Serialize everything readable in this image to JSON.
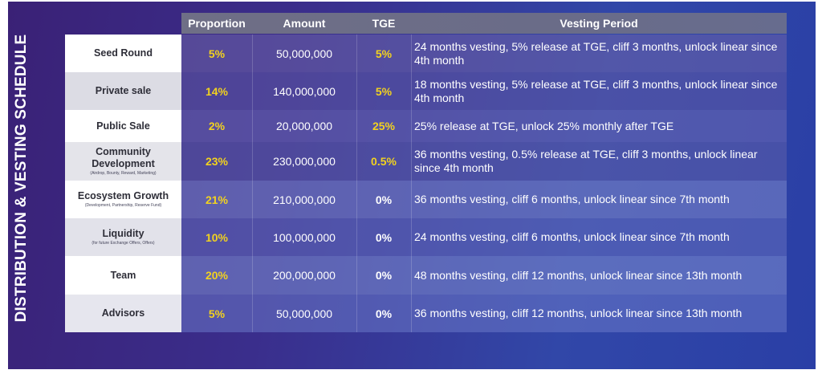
{
  "title": "DISTRIBUTION & VESTING SCHEDULE",
  "colors": {
    "highlight": "#f2d21f",
    "text": "#ffffff",
    "label_bg": "#f4f4f8"
  },
  "headers": {
    "proportion": "Proportion",
    "amount": "Amount",
    "tge": "TGE",
    "vesting": "Vesting Period"
  },
  "rows": [
    {
      "label": "Seed Round",
      "sub": "",
      "proportion": "5%",
      "amount": "50,000,000",
      "tge": "5%",
      "tge_highlight": true,
      "vesting": "24 months vesting, 5% release at TGE, cliff 3 months, unlock linear since 4th month"
    },
    {
      "label": "Private sale",
      "sub": "",
      "proportion": "14%",
      "amount": "140,000,000",
      "tge": "5%",
      "tge_highlight": true,
      "vesting": "18 months vesting, 5% release at TGE, cliff 3 months, unlock linear since 4th month"
    },
    {
      "label": "Public Sale",
      "sub": "",
      "proportion": "2%",
      "amount": "20,000,000",
      "tge": "25%",
      "tge_highlight": true,
      "vesting": "25% release at TGE, unlock 25% monthly after TGE"
    },
    {
      "label": "Community Development",
      "sub": "(Airdrop, Bounty, Reward, Marketing)",
      "proportion": "23%",
      "amount": "230,000,000",
      "tge": "0.5%",
      "tge_highlight": true,
      "vesting": "36 months vesting, 0.5% release at TGE, cliff 3 months, unlock linear since 4th month"
    },
    {
      "label": "Ecosystem Growth",
      "sub": "(Development, Partnership, Reserve Fund)",
      "proportion": "21%",
      "amount": "210,000,000",
      "tge": "0%",
      "tge_highlight": false,
      "vesting": "36 months vesting, cliff 6 months, unlock linear since 7th month"
    },
    {
      "label": "Liquidity",
      "sub": "(for future Exchange Offers, Offers)",
      "proportion": "10%",
      "amount": "100,000,000",
      "tge": "0%",
      "tge_highlight": false,
      "vesting": "24 months vesting, cliff 6 months, unlock linear since 7th month"
    },
    {
      "label": "Team",
      "sub": "",
      "proportion": "20%",
      "amount": "200,000,000",
      "tge": "0%",
      "tge_highlight": false,
      "vesting": "48 months vesting, cliff 12 months, unlock linear since 13th month"
    },
    {
      "label": "Advisors",
      "sub": "",
      "proportion": "5%",
      "amount": "50,000,000",
      "tge": "0%",
      "tge_highlight": false,
      "vesting": "36 months vesting, cliff 12 months, unlock linear since 13th month"
    }
  ]
}
